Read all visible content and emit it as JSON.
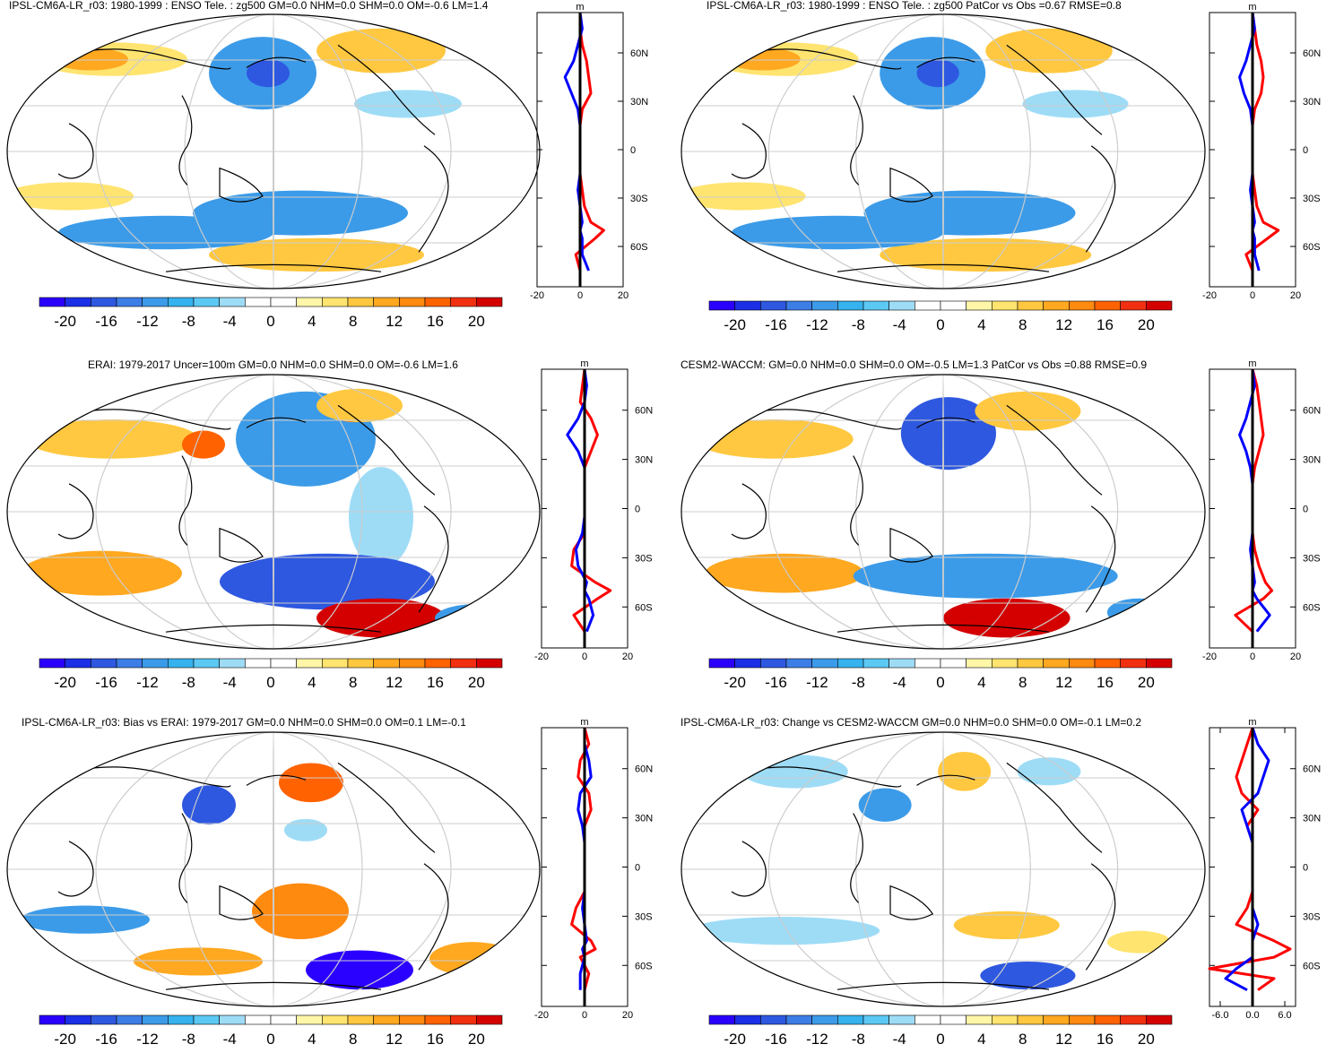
{
  "colorbar": {
    "colors": [
      "#2a00ff",
      "#1b2fe6",
      "#2e58e0",
      "#3d7de6",
      "#3c9be8",
      "#36b2ee",
      "#5cc8f4",
      "#9edcf6",
      "#ffffff",
      "#ffffff",
      "#fff6a8",
      "#ffe470",
      "#ffc840",
      "#ffa820",
      "#ff8a10",
      "#ff6200",
      "#f03010",
      "#d40000"
    ],
    "tick_labels": [
      "-20",
      "-16",
      "-12",
      "-8",
      "-4",
      "0",
      "4",
      "8",
      "12",
      "16",
      "20"
    ]
  },
  "series_colors": {
    "model": "#0000ff",
    "obs": "#ff0000",
    "mean": "#000000"
  },
  "lat_labels": [
    "60N",
    "30N",
    "0",
    "30S",
    "60S"
  ],
  "panels": [
    {
      "id": "p1",
      "title": "IPSL-CM6A-LR_r03: 1980-1999 : ENSO Tele. : zg500 GM=0.0 NHM=0.0 SHM=0.0 OM=-0.6 LM=1.4",
      "zonal_unit": "m",
      "zonal_xticks": [
        "-20",
        "0",
        "20"
      ],
      "zonal_xrange": [
        -20,
        20
      ],
      "zonal_profile": {
        "lat": [
          85,
          75,
          65,
          55,
          45,
          35,
          25,
          15,
          5,
          -5,
          -15,
          -25,
          -35,
          -45,
          -50,
          -55,
          -65,
          -75
        ],
        "blue": [
          0,
          1,
          -1,
          -3,
          -7,
          -4,
          -1,
          0,
          0,
          0,
          0,
          -1,
          0,
          1,
          0,
          1,
          1,
          4
        ],
        "red": [
          0,
          0,
          1,
          3,
          4,
          5,
          1,
          0,
          0,
          0,
          0,
          1,
          2,
          5,
          11,
          7,
          -2,
          0
        ]
      }
    },
    {
      "id": "p2",
      "title": "IPSL-CM6A-LR_r03: 1980-1999 : ENSO Tele. : zg500 PatCor vs Obs =0.67 RMSE=0.8",
      "zonal_unit": "m",
      "zonal_xticks": [
        "-20",
        "0",
        "20"
      ],
      "zonal_xrange": [
        -20,
        20
      ],
      "zonal_profile": {
        "lat": [
          85,
          75,
          65,
          55,
          45,
          35,
          25,
          15,
          5,
          -5,
          -15,
          -25,
          -35,
          -45,
          -50,
          -55,
          -65,
          -75
        ],
        "blue": [
          0,
          1,
          -1,
          -3,
          -6,
          -4,
          -1,
          0,
          0,
          0,
          0,
          -1,
          0,
          1,
          0,
          1,
          1,
          3
        ],
        "red": [
          0,
          1,
          2,
          4,
          5,
          4,
          1,
          0,
          0,
          0,
          0,
          1,
          2,
          5,
          12,
          7,
          -3,
          0
        ]
      }
    },
    {
      "id": "p3",
      "title": "ERAI: 1979-2017 Uncer=100m GM=0.0 NHM=0.0 SHM=0.0 OM=-0.6 LM=1.6",
      "zonal_unit": "m",
      "zonal_xticks": [
        "-20",
        "0",
        "20"
      ],
      "zonal_xrange": [
        -20,
        20
      ],
      "zonal_profile": {
        "lat": [
          85,
          75,
          65,
          55,
          45,
          35,
          25,
          15,
          5,
          -5,
          -15,
          -25,
          -35,
          -45,
          -50,
          -55,
          -65,
          -75
        ],
        "blue": [
          0,
          1,
          0,
          -3,
          -8,
          -3,
          0,
          0,
          0,
          0,
          -1,
          -4,
          -3,
          1,
          0,
          2,
          4,
          1
        ],
        "red": [
          0,
          -1,
          -2,
          3,
          6,
          3,
          0,
          0,
          0,
          0,
          0,
          -5,
          -6,
          5,
          12,
          6,
          -5,
          0
        ]
      }
    },
    {
      "id": "p4",
      "title": "CESM2-WACCM: GM=0.0 NHM=0.0 SHM=0.0 OM=-0.5 LM=1.3 PatCor vs Obs =0.88 RMSE=0.9",
      "zonal_unit": "m",
      "zonal_xticks": [
        "-20",
        "0",
        "20"
      ],
      "zonal_xrange": [
        -20,
        20
      ],
      "zonal_profile": {
        "lat": [
          85,
          75,
          65,
          55,
          45,
          35,
          25,
          15,
          5,
          -5,
          -15,
          -25,
          -35,
          -45,
          -50,
          -55,
          -65,
          -75
        ],
        "blue": [
          0,
          1,
          -1,
          -3,
          -6,
          -3,
          -1,
          0,
          0,
          0,
          0,
          -1,
          0,
          1,
          0,
          2,
          8,
          2
        ],
        "red": [
          0,
          2,
          3,
          4,
          5,
          3,
          1,
          0,
          0,
          0,
          0,
          1,
          3,
          6,
          9,
          5,
          -8,
          0
        ]
      }
    },
    {
      "id": "p5",
      "title": "IPSL-CM6A-LR_r03: Bias vs ERAI: 1979-2017 GM=0.0 NHM=0.0 SHM=0.0 OM=0.1 LM=-0.1",
      "zonal_unit": "m",
      "zonal_xticks": [
        "-20",
        "0",
        "20"
      ],
      "zonal_xrange": [
        -20,
        20
      ],
      "zonal_profile": {
        "lat": [
          85,
          75,
          65,
          55,
          45,
          35,
          25,
          15,
          5,
          -5,
          -15,
          -25,
          -35,
          -45,
          -50,
          -55,
          -65,
          -75
        ],
        "blue": [
          0,
          0,
          2,
          3,
          -2,
          -3,
          -1,
          0,
          0,
          0,
          0,
          -1,
          0,
          1,
          -1,
          0,
          -2,
          -2
        ],
        "red": [
          0,
          2,
          -2,
          -3,
          2,
          3,
          0,
          0,
          0,
          0,
          0,
          -4,
          -6,
          3,
          5,
          -2,
          2,
          0
        ]
      }
    },
    {
      "id": "p6",
      "title": "IPSL-CM6A-LR_r03: Change vs CESM2-WACCM GM=0.0 NHM=0.0 SHM=0.0 OM=-0.1 LM=0.2",
      "zonal_unit": "m",
      "zonal_xticks": [
        "-6.0",
        "0.0",
        "6.0"
      ],
      "zonal_xrange": [
        -8,
        8
      ],
      "zonal_profile": {
        "lat": [
          85,
          75,
          65,
          55,
          45,
          35,
          25,
          15,
          5,
          -5,
          -15,
          -25,
          -35,
          -45,
          -50,
          -55,
          -62,
          -68,
          -75
        ],
        "blue": [
          0,
          1,
          3,
          2,
          1,
          -2,
          -1,
          0,
          0,
          0,
          0,
          0,
          1,
          0,
          0,
          0,
          -3,
          -5,
          -1
        ],
        "red": [
          0,
          -1,
          -2,
          -3,
          -2,
          1,
          -1,
          0,
          0,
          0,
          0,
          -1,
          -3,
          4,
          7,
          4,
          -8,
          4,
          1
        ]
      }
    }
  ]
}
